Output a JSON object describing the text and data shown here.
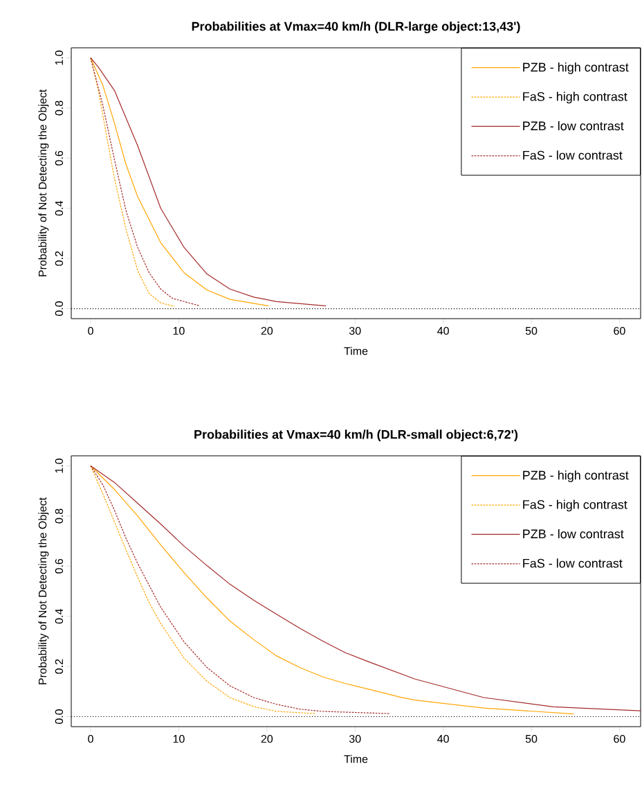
{
  "chart_data": [
    {
      "type": "line",
      "title": "Probabilities at Vmax=40 km/h (DLR-large object:13,43')",
      "xlabel": "Time",
      "ylabel": "Probability of Not Detecting the Object",
      "xlim": [
        -2.2,
        62.4
      ],
      "ylim": [
        -0.04,
        1.04
      ],
      "xticks": [
        0,
        10,
        20,
        30,
        40,
        50,
        60
      ],
      "yticks": [
        {
          "value": 0,
          "label": "0.0"
        },
        {
          "value": 0.2,
          "label": "0.2"
        },
        {
          "value": 0.4,
          "label": "0.4"
        },
        {
          "value": 0.6,
          "label": "0.6"
        },
        {
          "value": 0.8,
          "label": "0.8"
        },
        {
          "value": 1,
          "label": "1.0"
        }
      ],
      "legend": "top right",
      "ref_lines": [
        {
          "axis": "y",
          "value": 0,
          "line_style": "dotted",
          "color": "#000000"
        }
      ],
      "series": [
        {
          "name": "PZB - high contrast",
          "color": "#ffa500",
          "line_style": "solid",
          "x": [
            0,
            1.39,
            2.7,
            4.0,
            5.33,
            7.95,
            10.6,
            13.2,
            15.8,
            20.2
          ],
          "values": [
            1,
            0.89,
            0.74,
            0.576,
            0.447,
            0.263,
            0.143,
            0.074,
            0.037,
            0.011
          ]
        },
        {
          "name": "FaS - high contrast",
          "color": "#ffa500",
          "line_style": "dashed",
          "x": [
            0,
            0.87,
            1.92,
            2.7,
            4.0,
            5.33,
            6.64,
            7.95,
            9.5
          ],
          "values": [
            1,
            0.87,
            0.668,
            0.52,
            0.318,
            0.152,
            0.06,
            0.023,
            0.009
          ]
        },
        {
          "name": "PZB - low contrast",
          "color": "#a52a2a",
          "line_style": "solid",
          "x": [
            0,
            0.87,
            2.7,
            5.33,
            7.95,
            10.6,
            13.2,
            15.8,
            18.5,
            21.1,
            26.7
          ],
          "values": [
            1,
            0.963,
            0.87,
            0.65,
            0.4,
            0.244,
            0.138,
            0.078,
            0.046,
            0.028,
            0.011
          ]
        },
        {
          "name": "FaS - low contrast",
          "color": "#a52a2a",
          "line_style": "dashed",
          "x": [
            0,
            1.39,
            2.7,
            4.0,
            5.33,
            6.64,
            7.95,
            9.27,
            12.4
          ],
          "values": [
            1,
            0.81,
            0.594,
            0.392,
            0.244,
            0.143,
            0.078,
            0.041,
            0.011
          ]
        }
      ]
    },
    {
      "type": "line",
      "title": "Probabilities at Vmax=40 km/h (DLR-small object:6,72')",
      "xlabel": "Time",
      "ylabel": "Probability of Not Detecting the Object",
      "xlim": [
        -2.2,
        62.4
      ],
      "ylim": [
        -0.04,
        1.04
      ],
      "xticks": [
        0,
        10,
        20,
        30,
        40,
        50,
        60
      ],
      "yticks": [
        {
          "value": 0,
          "label": "0.0"
        },
        {
          "value": 0.2,
          "label": "0.2"
        },
        {
          "value": 0.4,
          "label": "0.4"
        },
        {
          "value": 0.6,
          "label": "0.6"
        },
        {
          "value": 0.8,
          "label": "0.8"
        },
        {
          "value": 1,
          "label": "1.0"
        }
      ],
      "legend": "top right",
      "ref_lines": [
        {
          "axis": "y",
          "value": 0,
          "line_style": "dotted",
          "color": "#000000"
        }
      ],
      "series": [
        {
          "name": "PZB - high contrast",
          "color": "#ffa500",
          "line_style": "solid",
          "x": [
            0,
            2.7,
            5.33,
            7.95,
            10.6,
            13.2,
            15.8,
            18.5,
            21.1,
            23.7,
            26.3,
            28.9,
            31.6,
            35.2,
            36.8,
            44.6,
            54.8
          ],
          "values": [
            1,
            0.906,
            0.8,
            0.685,
            0.574,
            0.473,
            0.381,
            0.307,
            0.242,
            0.196,
            0.159,
            0.132,
            0.109,
            0.077,
            0.066,
            0.034,
            0.011
          ]
        },
        {
          "name": "FaS - high contrast",
          "color": "#ffa500",
          "line_style": "dashed",
          "x": [
            0,
            1.39,
            2.7,
            4.0,
            5.33,
            6.64,
            7.95,
            10.6,
            13.2,
            15.8,
            18.5,
            21.1,
            25.5
          ],
          "values": [
            1,
            0.888,
            0.777,
            0.666,
            0.556,
            0.454,
            0.371,
            0.233,
            0.141,
            0.076,
            0.04,
            0.021,
            0.012
          ]
        },
        {
          "name": "PZB - low contrast",
          "color": "#a52a2a",
          "line_style": "solid",
          "x": [
            0,
            2.7,
            5.33,
            7.95,
            10.6,
            13.2,
            15.8,
            18.5,
            21.1,
            23.7,
            26.3,
            28.9,
            31.6,
            36.8,
            44.6,
            52.5,
            62.4
          ],
          "values": [
            1,
            0.934,
            0.851,
            0.768,
            0.68,
            0.602,
            0.528,
            0.464,
            0.408,
            0.353,
            0.302,
            0.255,
            0.218,
            0.15,
            0.076,
            0.039,
            0.023
          ]
        },
        {
          "name": "FaS - low contrast",
          "color": "#a52a2a",
          "line_style": "dashed",
          "x": [
            0,
            1.39,
            2.7,
            4.0,
            5.33,
            7.95,
            10.6,
            13.2,
            15.8,
            18.5,
            21.1,
            23.7,
            26.3,
            33.9
          ],
          "values": [
            1,
            0.924,
            0.823,
            0.712,
            0.611,
            0.436,
            0.298,
            0.196,
            0.123,
            0.076,
            0.049,
            0.03,
            0.021,
            0.012
          ]
        }
      ]
    }
  ]
}
